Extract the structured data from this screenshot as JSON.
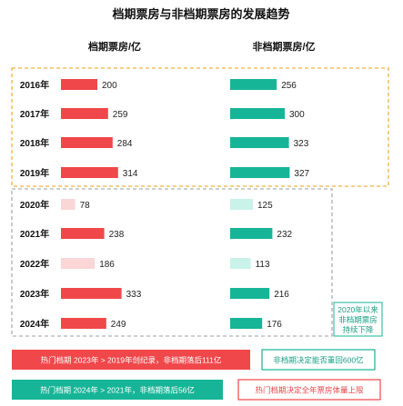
{
  "chart_data": {
    "type": "bar",
    "title": "档期票房与非档期票房的发展趋势",
    "unit": "亿",
    "categories": [
      "2016年",
      "2017年",
      "2018年",
      "2019年",
      "2020年",
      "2021年",
      "2022年",
      "2023年",
      "2024年"
    ],
    "series": [
      {
        "name": "档期票房/亿",
        "values": [
          200,
          259,
          284,
          314,
          78,
          238,
          186,
          333,
          249
        ]
      },
      {
        "name": "非档期票房/亿",
        "values": [
          256,
          300,
          323,
          327,
          125,
          232,
          113,
          216,
          176
        ]
      }
    ],
    "colors": {
      "holiday": "#f0474a",
      "holiday_light": "#fad6d6",
      "non_holiday": "#17b597",
      "non_holiday_light": "#c9f2e9",
      "dash_orange": "#f2b33d",
      "dash_gray": "#9aa0a6"
    }
  },
  "annotations": {
    "note_right": [
      "2020年以来",
      "非档期票房",
      "持续下降"
    ],
    "box_red_1": "热门档期 2023年 > 2019年创纪录，非档期落后111亿",
    "box_teal_1": "非档期决定能否重回600亿",
    "box_teal_2": "热门档期 2024年 > 2021年，非档期落后56亿",
    "box_red_2": "热门档期决定全年票房体量上限"
  }
}
